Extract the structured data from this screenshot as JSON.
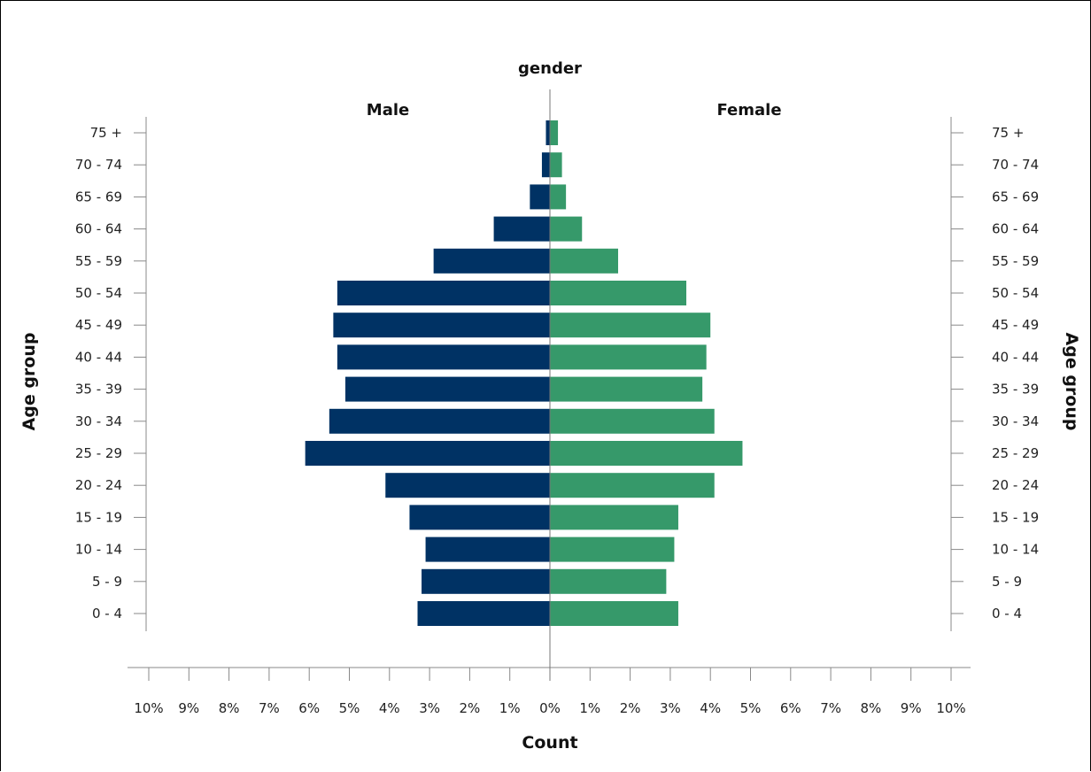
{
  "chart_data": {
    "type": "bar",
    "orientation": "horizontal-pyramid",
    "title": "gender",
    "xlabel": "Count",
    "ylabel_left": "Age group",
    "ylabel_right": "Age group",
    "xlim": [
      -10,
      10
    ],
    "x_tick_labels": [
      "10%",
      "9%",
      "8%",
      "7%",
      "6%",
      "5%",
      "4%",
      "3%",
      "2%",
      "1%",
      "0%",
      "1%",
      "2%",
      "3%",
      "4%",
      "5%",
      "6%",
      "7%",
      "8%",
      "9%",
      "10%"
    ],
    "categories": [
      "75 +",
      "70 - 74",
      "65 - 69",
      "60 - 64",
      "55 - 59",
      "50 - 54",
      "45 - 49",
      "40 - 44",
      "35 - 39",
      "30 - 34",
      "25 - 29",
      "20 - 24",
      "15 - 19",
      "10 - 14",
      "5 - 9",
      "0 - 4"
    ],
    "series": [
      {
        "name": "Male",
        "color": "#003264",
        "values": [
          0.1,
          0.2,
          0.5,
          1.4,
          2.9,
          5.3,
          5.4,
          5.3,
          5.1,
          5.5,
          6.1,
          4.1,
          3.5,
          3.1,
          3.2,
          3.3
        ]
      },
      {
        "name": "Female",
        "color": "#36996a",
        "values": [
          0.2,
          0.3,
          0.4,
          0.8,
          1.7,
          3.4,
          4.0,
          3.9,
          3.8,
          4.1,
          4.8,
          4.1,
          3.2,
          3.1,
          2.9,
          3.2
        ]
      }
    ],
    "grid": false
  }
}
